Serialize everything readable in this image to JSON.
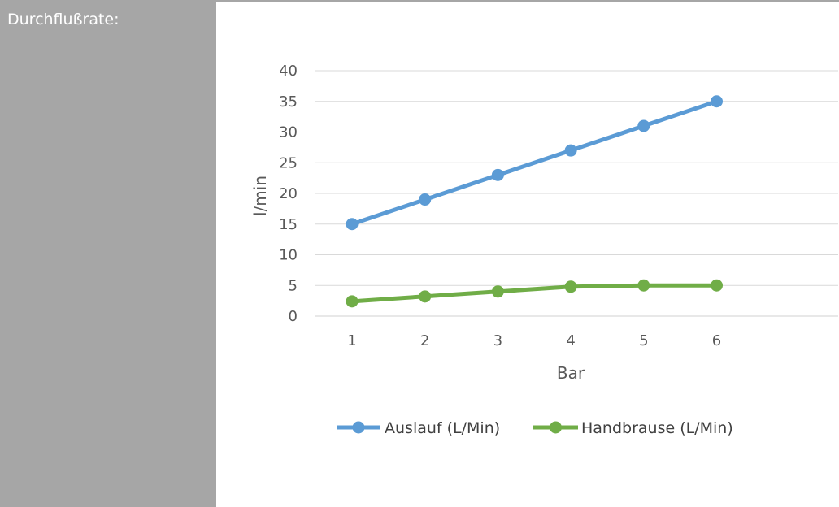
{
  "sidebar": {
    "label": "Durchflußrate:"
  },
  "chart_data": {
    "type": "line",
    "title": "",
    "xlabel": "Bar",
    "ylabel": "l/min",
    "categories": [
      "1",
      "2",
      "3",
      "4",
      "5",
      "6"
    ],
    "ylim": [
      0,
      40
    ],
    "yticks": [
      "0",
      "5",
      "10",
      "15",
      "20",
      "25",
      "30",
      "35",
      "40"
    ],
    "grid": true,
    "legend_position": "bottom",
    "series": [
      {
        "name": "Auslauf (L/Min)",
        "color": "#5b9bd5",
        "values": [
          15,
          19,
          23,
          27,
          31,
          35
        ]
      },
      {
        "name": "Handbrause (L/Min)",
        "color": "#70ad47",
        "values": [
          2.4,
          3.2,
          4.0,
          4.8,
          5.0,
          5.0
        ]
      }
    ]
  }
}
